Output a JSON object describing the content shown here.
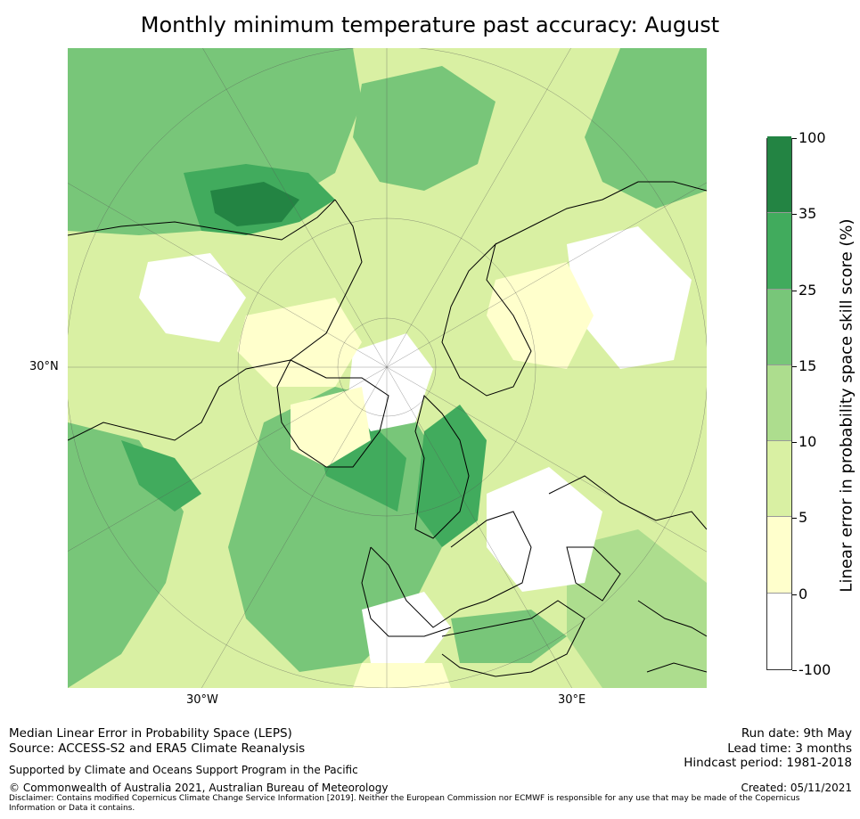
{
  "title": "Monthly minimum temperature past accuracy: August",
  "map": {
    "projection": "north-polar stereographic",
    "latitude_label": "30°N",
    "longitude_labels": [
      "30°W",
      "30°E"
    ],
    "legend_placement": "right"
  },
  "colorbar": {
    "title": "Linear error in probability space skill score (%)",
    "tick_labels": [
      "100",
      "35",
      "25",
      "15",
      "10",
      "5",
      "0",
      "-100"
    ],
    "bins": [
      {
        "range": "-100 to 0",
        "color": "#ffffff"
      },
      {
        "range": "0 to 5",
        "color": "#ffffcc"
      },
      {
        "range": "5 to 10",
        "color": "#d9f0a3"
      },
      {
        "range": "10 to 15",
        "color": "#addd8e"
      },
      {
        "range": "15 to 25",
        "color": "#78c679"
      },
      {
        "range": "25 to 35",
        "color": "#41ab5d"
      },
      {
        "range": "35 to 100",
        "color": "#238443"
      }
    ]
  },
  "footer": {
    "method": "Median Linear Error in Probability Space (LEPS)",
    "source": "Source: ACCESS-S2 and ERA5 Climate Reanalysis",
    "support": "Supported by Climate and Oceans Support Program in the Pacific",
    "copyright": "© Commonwealth of Australia 2021, Australian Bureau of Meteorology",
    "disclaimer": "Disclaimer: Contains modified Copernicus Climate Change Service Information [2019]. Neither the European Commission nor ECMWF is responsible for any use that may be made of the Copernicus Information or Data it contains.",
    "run_date": "Run date: 9th May",
    "lead_time": "Lead time: 3 months",
    "hindcast": "Hindcast period: 1981-2018",
    "created": "Created: 05/11/2021"
  }
}
